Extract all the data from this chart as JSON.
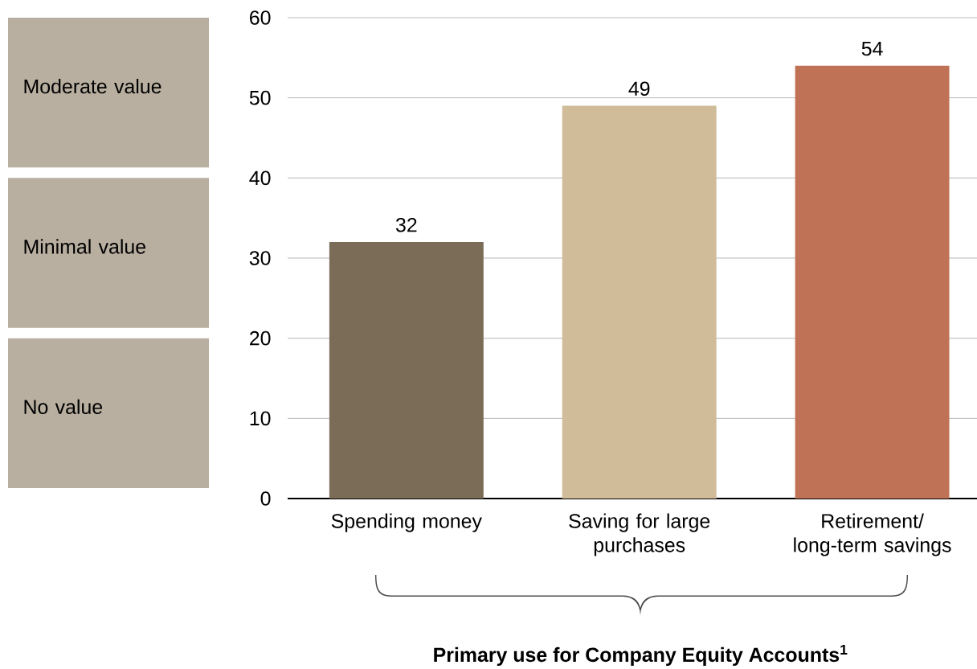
{
  "chart_data": {
    "type": "bar",
    "xlabel": "Primary use for Company Equity Accounts$^{1}$",
    "categories": [
      "Spending money",
      "Saving for large purchases",
      "Retirement/ long-term savings"
    ],
    "values": [
      32,
      49,
      54
    ],
    "colors": [
      "#7b6c58",
      "#d0bc98",
      "#c07257"
    ],
    "ylim": [
      0,
      60
    ],
    "yticks": [
      0,
      10,
      20,
      30,
      40,
      50,
      60
    ],
    "grid": "y",
    "data_labels": true,
    "annotations": [
      "Moderate value",
      "Minimal value",
      "No value"
    ]
  }
}
